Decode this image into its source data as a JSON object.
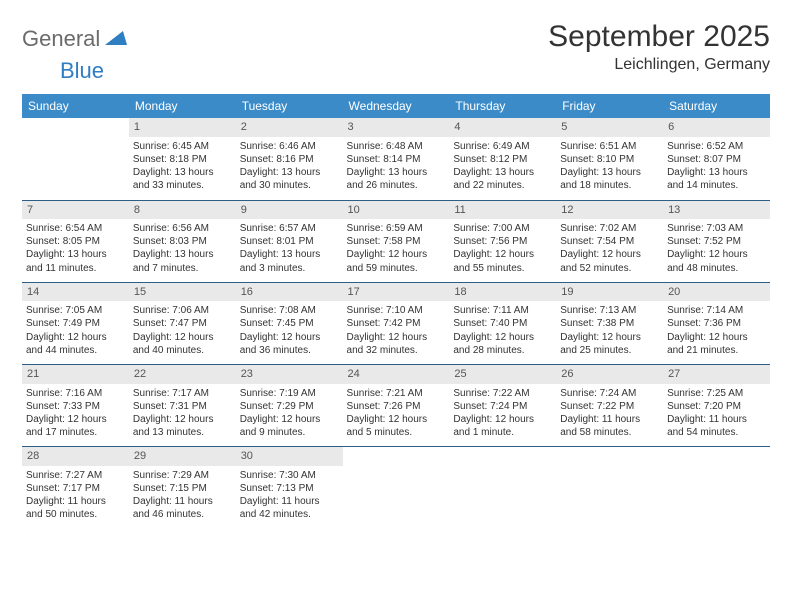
{
  "logo": {
    "text1": "General",
    "text2": "Blue",
    "color1": "#6b6b6b",
    "color2": "#2f7ec2"
  },
  "title": "September 2025",
  "location": "Leichlingen, Germany",
  "colors": {
    "header_bg": "#3b8bc8",
    "header_text": "#ffffff",
    "daynum_bg": "#e9e9e9",
    "row_border": "#2e5d86",
    "text": "#333333"
  },
  "weekdays": [
    "Sunday",
    "Monday",
    "Tuesday",
    "Wednesday",
    "Thursday",
    "Friday",
    "Saturday"
  ],
  "weeks": [
    [
      {
        "day": "",
        "lines": [
          "",
          "",
          "",
          ""
        ]
      },
      {
        "day": "1",
        "lines": [
          "Sunrise: 6:45 AM",
          "Sunset: 8:18 PM",
          "Daylight: 13 hours",
          "and 33 minutes."
        ]
      },
      {
        "day": "2",
        "lines": [
          "Sunrise: 6:46 AM",
          "Sunset: 8:16 PM",
          "Daylight: 13 hours",
          "and 30 minutes."
        ]
      },
      {
        "day": "3",
        "lines": [
          "Sunrise: 6:48 AM",
          "Sunset: 8:14 PM",
          "Daylight: 13 hours",
          "and 26 minutes."
        ]
      },
      {
        "day": "4",
        "lines": [
          "Sunrise: 6:49 AM",
          "Sunset: 8:12 PM",
          "Daylight: 13 hours",
          "and 22 minutes."
        ]
      },
      {
        "day": "5",
        "lines": [
          "Sunrise: 6:51 AM",
          "Sunset: 8:10 PM",
          "Daylight: 13 hours",
          "and 18 minutes."
        ]
      },
      {
        "day": "6",
        "lines": [
          "Sunrise: 6:52 AM",
          "Sunset: 8:07 PM",
          "Daylight: 13 hours",
          "and 14 minutes."
        ]
      }
    ],
    [
      {
        "day": "7",
        "lines": [
          "Sunrise: 6:54 AM",
          "Sunset: 8:05 PM",
          "Daylight: 13 hours",
          "and 11 minutes."
        ]
      },
      {
        "day": "8",
        "lines": [
          "Sunrise: 6:56 AM",
          "Sunset: 8:03 PM",
          "Daylight: 13 hours",
          "and 7 minutes."
        ]
      },
      {
        "day": "9",
        "lines": [
          "Sunrise: 6:57 AM",
          "Sunset: 8:01 PM",
          "Daylight: 13 hours",
          "and 3 minutes."
        ]
      },
      {
        "day": "10",
        "lines": [
          "Sunrise: 6:59 AM",
          "Sunset: 7:58 PM",
          "Daylight: 12 hours",
          "and 59 minutes."
        ]
      },
      {
        "day": "11",
        "lines": [
          "Sunrise: 7:00 AM",
          "Sunset: 7:56 PM",
          "Daylight: 12 hours",
          "and 55 minutes."
        ]
      },
      {
        "day": "12",
        "lines": [
          "Sunrise: 7:02 AM",
          "Sunset: 7:54 PM",
          "Daylight: 12 hours",
          "and 52 minutes."
        ]
      },
      {
        "day": "13",
        "lines": [
          "Sunrise: 7:03 AM",
          "Sunset: 7:52 PM",
          "Daylight: 12 hours",
          "and 48 minutes."
        ]
      }
    ],
    [
      {
        "day": "14",
        "lines": [
          "Sunrise: 7:05 AM",
          "Sunset: 7:49 PM",
          "Daylight: 12 hours",
          "and 44 minutes."
        ]
      },
      {
        "day": "15",
        "lines": [
          "Sunrise: 7:06 AM",
          "Sunset: 7:47 PM",
          "Daylight: 12 hours",
          "and 40 minutes."
        ]
      },
      {
        "day": "16",
        "lines": [
          "Sunrise: 7:08 AM",
          "Sunset: 7:45 PM",
          "Daylight: 12 hours",
          "and 36 minutes."
        ]
      },
      {
        "day": "17",
        "lines": [
          "Sunrise: 7:10 AM",
          "Sunset: 7:42 PM",
          "Daylight: 12 hours",
          "and 32 minutes."
        ]
      },
      {
        "day": "18",
        "lines": [
          "Sunrise: 7:11 AM",
          "Sunset: 7:40 PM",
          "Daylight: 12 hours",
          "and 28 minutes."
        ]
      },
      {
        "day": "19",
        "lines": [
          "Sunrise: 7:13 AM",
          "Sunset: 7:38 PM",
          "Daylight: 12 hours",
          "and 25 minutes."
        ]
      },
      {
        "day": "20",
        "lines": [
          "Sunrise: 7:14 AM",
          "Sunset: 7:36 PM",
          "Daylight: 12 hours",
          "and 21 minutes."
        ]
      }
    ],
    [
      {
        "day": "21",
        "lines": [
          "Sunrise: 7:16 AM",
          "Sunset: 7:33 PM",
          "Daylight: 12 hours",
          "and 17 minutes."
        ]
      },
      {
        "day": "22",
        "lines": [
          "Sunrise: 7:17 AM",
          "Sunset: 7:31 PM",
          "Daylight: 12 hours",
          "and 13 minutes."
        ]
      },
      {
        "day": "23",
        "lines": [
          "Sunrise: 7:19 AM",
          "Sunset: 7:29 PM",
          "Daylight: 12 hours",
          "and 9 minutes."
        ]
      },
      {
        "day": "24",
        "lines": [
          "Sunrise: 7:21 AM",
          "Sunset: 7:26 PM",
          "Daylight: 12 hours",
          "and 5 minutes."
        ]
      },
      {
        "day": "25",
        "lines": [
          "Sunrise: 7:22 AM",
          "Sunset: 7:24 PM",
          "Daylight: 12 hours",
          "and 1 minute."
        ]
      },
      {
        "day": "26",
        "lines": [
          "Sunrise: 7:24 AM",
          "Sunset: 7:22 PM",
          "Daylight: 11 hours",
          "and 58 minutes."
        ]
      },
      {
        "day": "27",
        "lines": [
          "Sunrise: 7:25 AM",
          "Sunset: 7:20 PM",
          "Daylight: 11 hours",
          "and 54 minutes."
        ]
      }
    ],
    [
      {
        "day": "28",
        "lines": [
          "Sunrise: 7:27 AM",
          "Sunset: 7:17 PM",
          "Daylight: 11 hours",
          "and 50 minutes."
        ]
      },
      {
        "day": "29",
        "lines": [
          "Sunrise: 7:29 AM",
          "Sunset: 7:15 PM",
          "Daylight: 11 hours",
          "and 46 minutes."
        ]
      },
      {
        "day": "30",
        "lines": [
          "Sunrise: 7:30 AM",
          "Sunset: 7:13 PM",
          "Daylight: 11 hours",
          "and 42 minutes."
        ]
      },
      {
        "day": "",
        "lines": [
          "",
          "",
          "",
          ""
        ]
      },
      {
        "day": "",
        "lines": [
          "",
          "",
          "",
          ""
        ]
      },
      {
        "day": "",
        "lines": [
          "",
          "",
          "",
          ""
        ]
      },
      {
        "day": "",
        "lines": [
          "",
          "",
          "",
          ""
        ]
      }
    ]
  ]
}
